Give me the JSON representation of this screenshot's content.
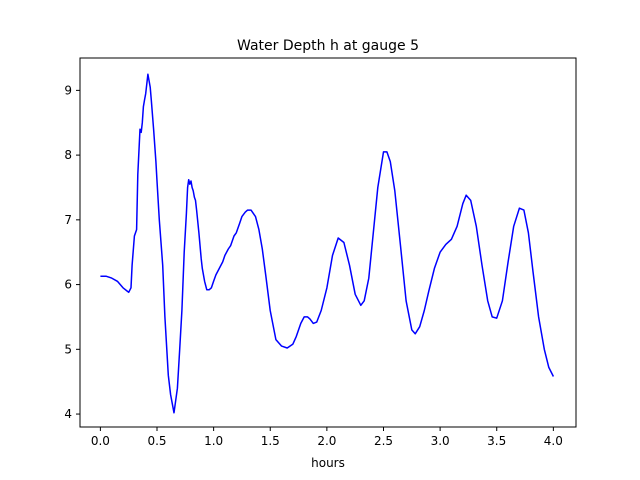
{
  "chart_data": {
    "type": "line",
    "title": "Water Depth h at gauge 5",
    "xlabel": "hours",
    "ylabel": "",
    "xlim": [
      -0.18,
      4.2
    ],
    "ylim": [
      3.8,
      9.5
    ],
    "xticks": [
      "0.0",
      "0.5",
      "1.0",
      "1.5",
      "2.0",
      "2.5",
      "3.0",
      "3.5",
      "4.0"
    ],
    "yticks": [
      "4",
      "5",
      "6",
      "7",
      "8",
      "9"
    ],
    "grid": false,
    "line_color": "#0000ff",
    "series": [
      {
        "x": [
          0.0,
          0.05,
          0.1,
          0.15,
          0.2,
          0.25,
          0.27,
          0.28,
          0.3,
          0.32,
          0.33,
          0.35,
          0.36,
          0.37,
          0.38,
          0.39,
          0.4,
          0.42,
          0.44,
          0.45,
          0.47,
          0.49,
          0.5,
          0.52,
          0.55,
          0.57,
          0.6,
          0.62,
          0.65,
          0.68,
          0.7,
          0.72,
          0.74,
          0.76,
          0.77,
          0.78,
          0.79,
          0.8,
          0.81,
          0.82,
          0.83,
          0.84,
          0.85,
          0.87,
          0.89,
          0.9,
          0.92,
          0.94,
          0.96,
          0.98,
          1.0,
          1.02,
          1.05,
          1.08,
          1.1,
          1.13,
          1.15,
          1.18,
          1.2,
          1.23,
          1.25,
          1.28,
          1.3,
          1.33,
          1.37,
          1.4,
          1.43,
          1.46,
          1.5,
          1.55,
          1.6,
          1.65,
          1.7,
          1.73,
          1.77,
          1.8,
          1.83,
          1.85,
          1.88,
          1.91,
          1.95,
          2.0,
          2.05,
          2.1,
          2.15,
          2.2,
          2.25,
          2.3,
          2.33,
          2.37,
          2.41,
          2.45,
          2.5,
          2.53,
          2.56,
          2.6,
          2.65,
          2.7,
          2.75,
          2.78,
          2.82,
          2.86,
          2.9,
          2.95,
          3.0,
          3.05,
          3.1,
          3.15,
          3.2,
          3.23,
          3.27,
          3.32,
          3.37,
          3.42,
          3.46,
          3.5,
          3.55,
          3.6,
          3.65,
          3.7,
          3.74,
          3.78,
          3.82,
          3.87,
          3.92,
          3.96,
          4.0
        ],
        "y": [
          6.13,
          6.13,
          6.1,
          6.05,
          5.95,
          5.88,
          5.95,
          6.3,
          6.75,
          6.85,
          7.7,
          8.4,
          8.35,
          8.5,
          8.75,
          8.85,
          8.95,
          9.25,
          9.05,
          8.85,
          8.4,
          7.9,
          7.6,
          7.0,
          6.3,
          5.5,
          4.6,
          4.3,
          4.02,
          4.4,
          5.0,
          5.6,
          6.5,
          7.1,
          7.5,
          7.62,
          7.55,
          7.6,
          7.5,
          7.45,
          7.35,
          7.3,
          7.15,
          6.8,
          6.4,
          6.25,
          6.05,
          5.92,
          5.92,
          5.95,
          6.05,
          6.15,
          6.25,
          6.35,
          6.45,
          6.55,
          6.6,
          6.75,
          6.8,
          6.95,
          7.05,
          7.12,
          7.15,
          7.15,
          7.05,
          6.85,
          6.55,
          6.15,
          5.6,
          5.15,
          5.05,
          5.02,
          5.08,
          5.2,
          5.4,
          5.5,
          5.5,
          5.47,
          5.4,
          5.42,
          5.6,
          5.95,
          6.45,
          6.72,
          6.65,
          6.3,
          5.85,
          5.68,
          5.75,
          6.1,
          6.8,
          7.5,
          8.05,
          8.05,
          7.9,
          7.45,
          6.6,
          5.75,
          5.3,
          5.24,
          5.35,
          5.6,
          5.9,
          6.25,
          6.5,
          6.62,
          6.7,
          6.9,
          7.25,
          7.38,
          7.3,
          6.9,
          6.3,
          5.75,
          5.5,
          5.48,
          5.75,
          6.35,
          6.9,
          7.18,
          7.15,
          6.8,
          6.2,
          5.5,
          5.0,
          4.72,
          4.58
        ]
      }
    ]
  }
}
